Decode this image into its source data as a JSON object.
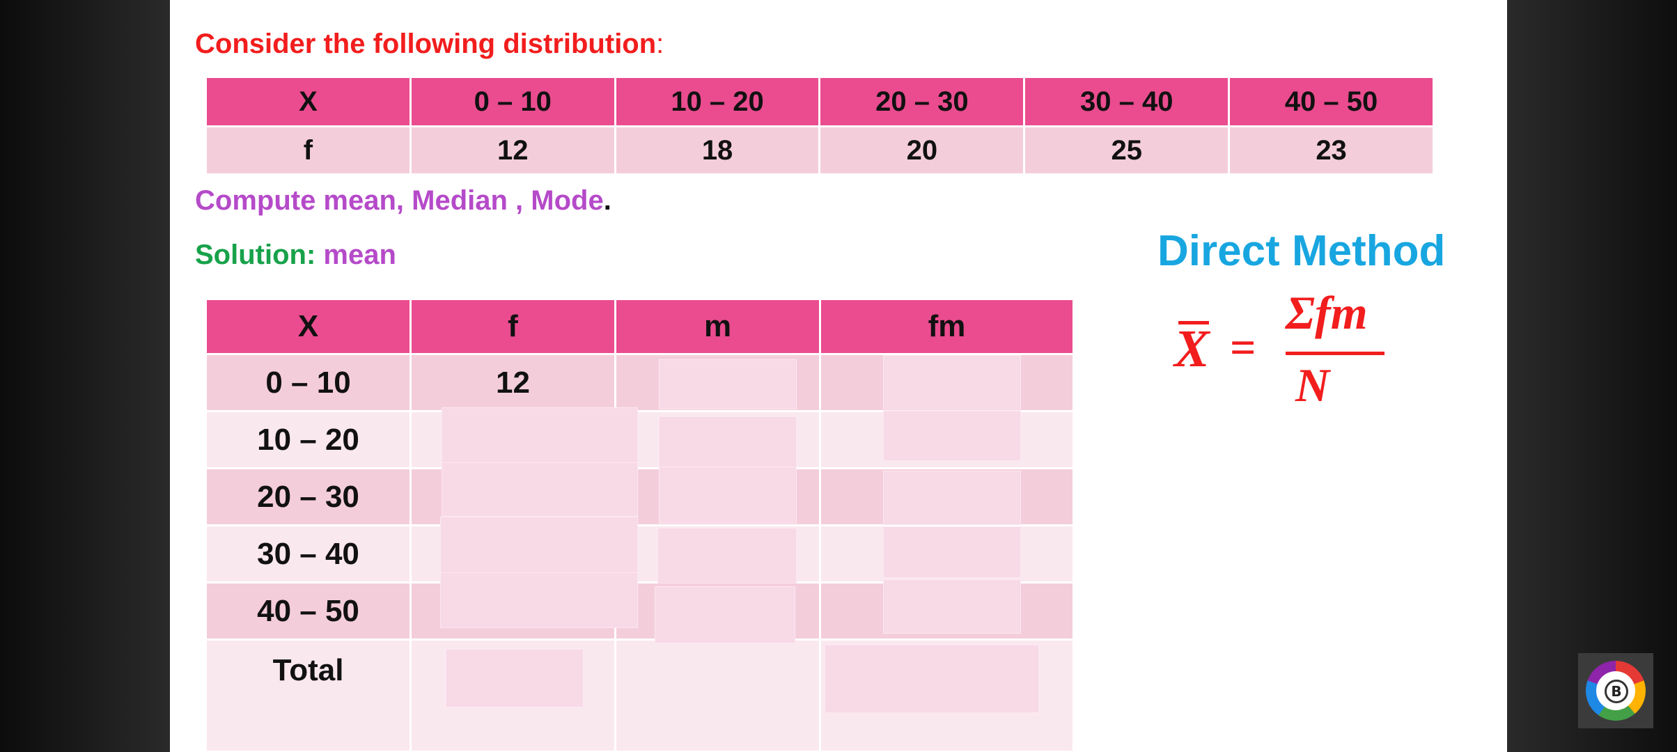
{
  "slide": {
    "prompt": "Consider the following distribution",
    "prompt_colon": ":",
    "task": "Compute mean, Median , Mode",
    "task_period": ".",
    "solution_label": "Solution:",
    "solution_topic": "mean",
    "method_title": "Direct Method"
  },
  "distribution_table": {
    "header": [
      "X",
      "0 – 10",
      "10 – 20",
      "20 – 30",
      "30 – 40",
      "40 – 50"
    ],
    "row": [
      "f",
      "12",
      "18",
      "20",
      "25",
      "23"
    ]
  },
  "solution_table": {
    "header": [
      "X",
      "f",
      "m",
      "fm"
    ],
    "rows": [
      [
        "0 – 10",
        "12",
        "",
        ""
      ],
      [
        "10 – 20",
        "",
        "",
        ""
      ],
      [
        "20 – 30",
        "",
        "",
        ""
      ],
      [
        "30 – 40",
        "",
        "",
        ""
      ],
      [
        "40 – 50",
        "",
        "",
        ""
      ]
    ],
    "total_label": "Total"
  },
  "formula": {
    "lhs": "X",
    "equals": "=",
    "numerator": "Σfm",
    "denominator": "N"
  },
  "colors": {
    "table_header": "#ea4c8f",
    "row_dark": "#f4cddb",
    "row_light": "#fae8ef",
    "red": "#f21d1d",
    "purple": "#b54ac9",
    "green": "#17a24a",
    "blue": "#18a6e0"
  },
  "watermark": {
    "icon": "channel-logo-icon",
    "letter": "B"
  }
}
